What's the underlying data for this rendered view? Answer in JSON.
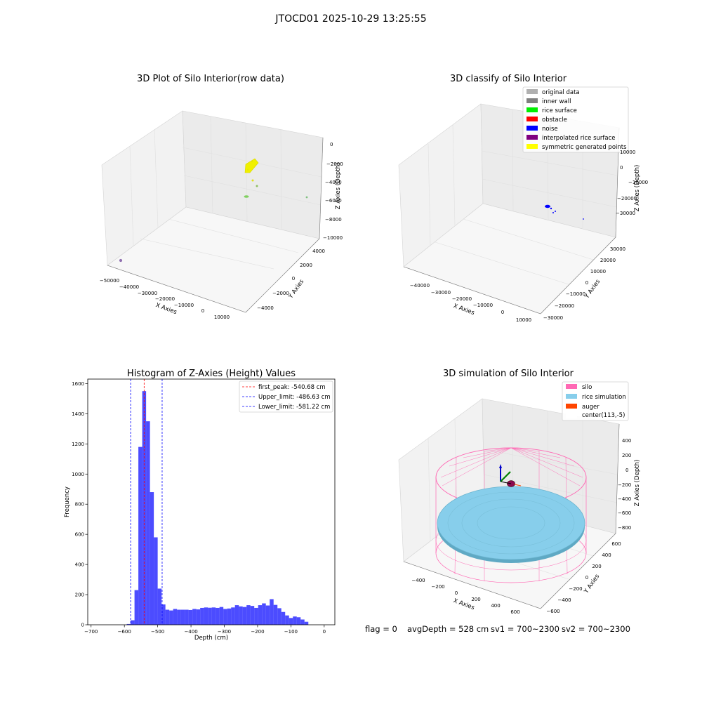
{
  "figure": {
    "suptitle": "JTOCD01 2025-10-29 13:25:55",
    "footer": {
      "flag": "flag = 0",
      "avg_depth": "avgDepth = 528 cm",
      "sv1": "sv1 = 700~2300",
      "sv2": "sv2 = 700~2300"
    }
  },
  "panels": {
    "raw": {
      "title": "3D Plot of Silo Interior(row data)",
      "xlabel": "X Axies",
      "ylabel": "Y Axies",
      "zlabel": "Z Axies (Depth)",
      "xticks": [
        "−50000",
        "−40000",
        "−30000",
        "−20000",
        "−10000",
        "0",
        "10000"
      ],
      "yticks": [
        "−4000",
        "−2000",
        "0",
        "2000",
        "4000"
      ],
      "zticks": [
        "0",
        "−2000",
        "−4000",
        "−6000",
        "−8000",
        "−10000"
      ]
    },
    "classify": {
      "title": "3D classify of Silo Interior",
      "xlabel": "X Axies",
      "ylabel": "Y Axies",
      "zlabel": "Z Axies (Depth)",
      "xticks": [
        "−40000",
        "−30000",
        "−20000",
        "−10000",
        "0",
        "10000"
      ],
      "yticks": [
        "−30000",
        "−20000",
        "−10000",
        "0",
        "10000",
        "20000",
        "30000"
      ],
      "zticks": [
        "10000",
        "0",
        "−10000",
        "−20000",
        "−30000"
      ],
      "legend": [
        {
          "label": "original data",
          "color": "#b0b0b0"
        },
        {
          "label": "inner wall",
          "color": "#808080"
        },
        {
          "label": "rice surface",
          "color": "#00ee00"
        },
        {
          "label": "obstacle",
          "color": "#ff0000"
        },
        {
          "label": "noise",
          "color": "#0000ff"
        },
        {
          "label": "interpolated rice surface",
          "color": "#800080"
        },
        {
          "label": "symmetric generated points",
          "color": "#ffff00"
        }
      ]
    },
    "simulation": {
      "title": "3D simulation of Silo Interior",
      "xlabel": "X Axies",
      "ylabel": "Y Axies",
      "zlabel": "Z Axies (Depth)",
      "xticks": [
        "−400",
        "−200",
        "0",
        "200",
        "400",
        "600"
      ],
      "yticks": [
        "−600",
        "−400",
        "−200",
        "0",
        "200",
        "400",
        "600"
      ],
      "zticks": [
        "400",
        "200",
        "0",
        "−200",
        "−400",
        "−600",
        "−800"
      ],
      "legend": [
        {
          "label": "silo",
          "color": "#ff69b4"
        },
        {
          "label": "rice simulation",
          "color": "#87ceeb"
        },
        {
          "label": "auger",
          "color": "#ff4500"
        },
        {
          "label": "center(113,-5)",
          "color": "#ffffff"
        }
      ]
    }
  },
  "chart_data": {
    "type": "bar",
    "title": "Histogram of Z-Axies (Height) Values",
    "xlabel": "Depth (cm)",
    "ylabel": "Frequency",
    "xlim": [
      -710,
      32
    ],
    "ylim": [
      0,
      1630
    ],
    "xticks": [
      -700,
      -600,
      -500,
      -400,
      -300,
      -200,
      -100,
      0
    ],
    "yticks": [
      0,
      200,
      400,
      600,
      800,
      1000,
      1200,
      1400,
      1600
    ],
    "bin_width": 11.6,
    "bin_start": -592.8,
    "values": [
      5,
      30,
      230,
      1180,
      1550,
      1350,
      880,
      580,
      240,
      135,
      100,
      95,
      105,
      100,
      100,
      100,
      98,
      105,
      102,
      112,
      115,
      113,
      115,
      112,
      118,
      105,
      108,
      115,
      130,
      122,
      118,
      130,
      125,
      112,
      130,
      142,
      128,
      170,
      132,
      110,
      85,
      62,
      45,
      55,
      50,
      35,
      20
    ],
    "bar_color": "#0000ff",
    "lines": [
      {
        "label": "first_peak: -540.68 cm",
        "x": -540.68,
        "color": "#ff0000"
      },
      {
        "label": "Upper_limit: -486.63 cm",
        "x": -486.63,
        "color": "#0000ff"
      },
      {
        "label": "Lower_limit: -581.22 cm",
        "x": -581.22,
        "color": "#0000ff"
      }
    ],
    "legend_position": "top-right"
  }
}
